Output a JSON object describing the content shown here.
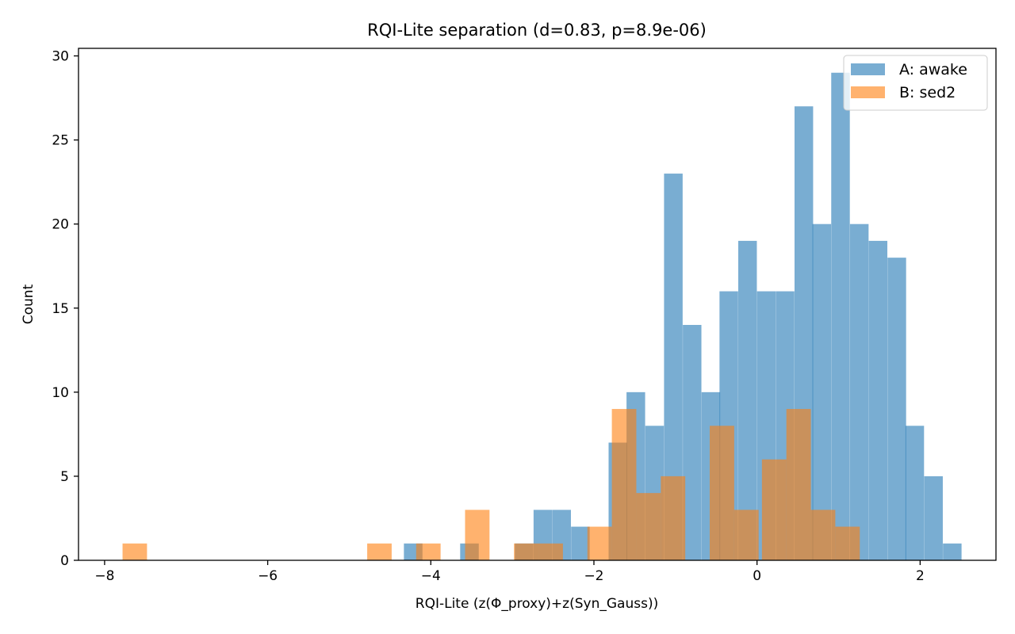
{
  "chart_data": {
    "type": "bar",
    "title": "RQI-Lite separation (d=0.83, p=8.9e-06)",
    "xlabel": "RQI-Lite (z(Φ_proxy)+z(Syn_Gauss))",
    "ylabel": "Count",
    "xlim": [
      -8.32,
      2.93
    ],
    "ylim": [
      0,
      30.45
    ],
    "xticks": [
      -8,
      -6,
      -4,
      -2,
      0,
      2
    ],
    "yticks": [
      0,
      5,
      10,
      15,
      20,
      25,
      30
    ],
    "grid": false,
    "legend_position": "top-right",
    "series": [
      {
        "name": "A: awake",
        "color": "#1f77b4",
        "opacity": 0.6,
        "bin_width": 0.228,
        "bins": [
          {
            "x0": -4.33,
            "count": 1
          },
          {
            "x0": -3.64,
            "count": 1
          },
          {
            "x0": -2.97,
            "count": 1
          },
          {
            "x0": -2.74,
            "count": 3
          },
          {
            "x0": -2.51,
            "count": 3
          },
          {
            "x0": -2.28,
            "count": 2
          },
          {
            "x0": -1.82,
            "count": 7
          },
          {
            "x0": -1.6,
            "count": 10
          },
          {
            "x0": -1.37,
            "count": 8
          },
          {
            "x0": -1.14,
            "count": 23
          },
          {
            "x0": -0.91,
            "count": 14
          },
          {
            "x0": -0.68,
            "count": 10
          },
          {
            "x0": -0.46,
            "count": 16
          },
          {
            "x0": -0.23,
            "count": 19
          },
          {
            "x0": 0.0,
            "count": 16
          },
          {
            "x0": 0.23,
            "count": 16
          },
          {
            "x0": 0.46,
            "count": 27
          },
          {
            "x0": 0.68,
            "count": 20
          },
          {
            "x0": 0.91,
            "count": 29
          },
          {
            "x0": 1.14,
            "count": 20
          },
          {
            "x0": 1.37,
            "count": 19
          },
          {
            "x0": 1.6,
            "count": 18
          },
          {
            "x0": 1.82,
            "count": 8
          },
          {
            "x0": 2.05,
            "count": 5
          },
          {
            "x0": 2.28,
            "count": 1
          }
        ]
      },
      {
        "name": "B: sed2",
        "color": "#ff7f0e",
        "opacity": 0.6,
        "bin_width": 0.3,
        "bins": [
          {
            "x0": -7.78,
            "count": 1
          },
          {
            "x0": -4.78,
            "count": 1
          },
          {
            "x0": -4.18,
            "count": 1
          },
          {
            "x0": -3.58,
            "count": 3
          },
          {
            "x0": -2.98,
            "count": 1
          },
          {
            "x0": -2.68,
            "count": 1
          },
          {
            "x0": -2.08,
            "count": 2
          },
          {
            "x0": -1.78,
            "count": 9
          },
          {
            "x0": -1.48,
            "count": 4
          },
          {
            "x0": -1.18,
            "count": 5
          },
          {
            "x0": -0.58,
            "count": 8
          },
          {
            "x0": -0.28,
            "count": 3
          },
          {
            "x0": 0.06,
            "count": 6
          },
          {
            "x0": 0.36,
            "count": 9
          },
          {
            "x0": 0.66,
            "count": 3
          },
          {
            "x0": 0.96,
            "count": 2
          }
        ]
      }
    ]
  }
}
